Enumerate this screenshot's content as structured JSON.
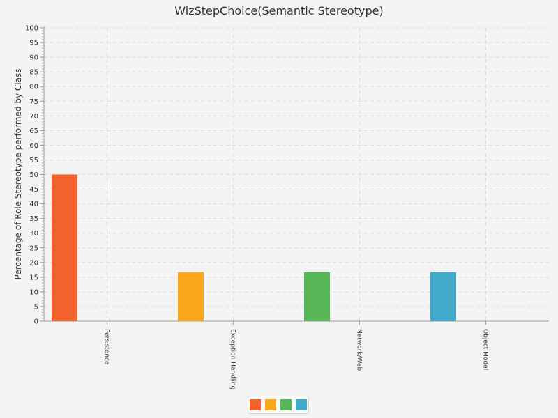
{
  "chart_data": {
    "type": "bar",
    "title": "WizStepChoice(Semantic Stereotype)",
    "xlabel": "",
    "ylabel": "Percentage of Role Stereotype performed by Class",
    "categories": [
      "Persistence",
      "Exception Handling",
      "Network/Web",
      "Object Model"
    ],
    "values": [
      50,
      16.67,
      16.67,
      16.67
    ],
    "colors": [
      "#f3622d",
      "#fba71b",
      "#57b757",
      "#41a9c9"
    ],
    "ylim": [
      0,
      100
    ],
    "ytick_step": 5,
    "grid": true,
    "legend_position": "bottom-center"
  }
}
